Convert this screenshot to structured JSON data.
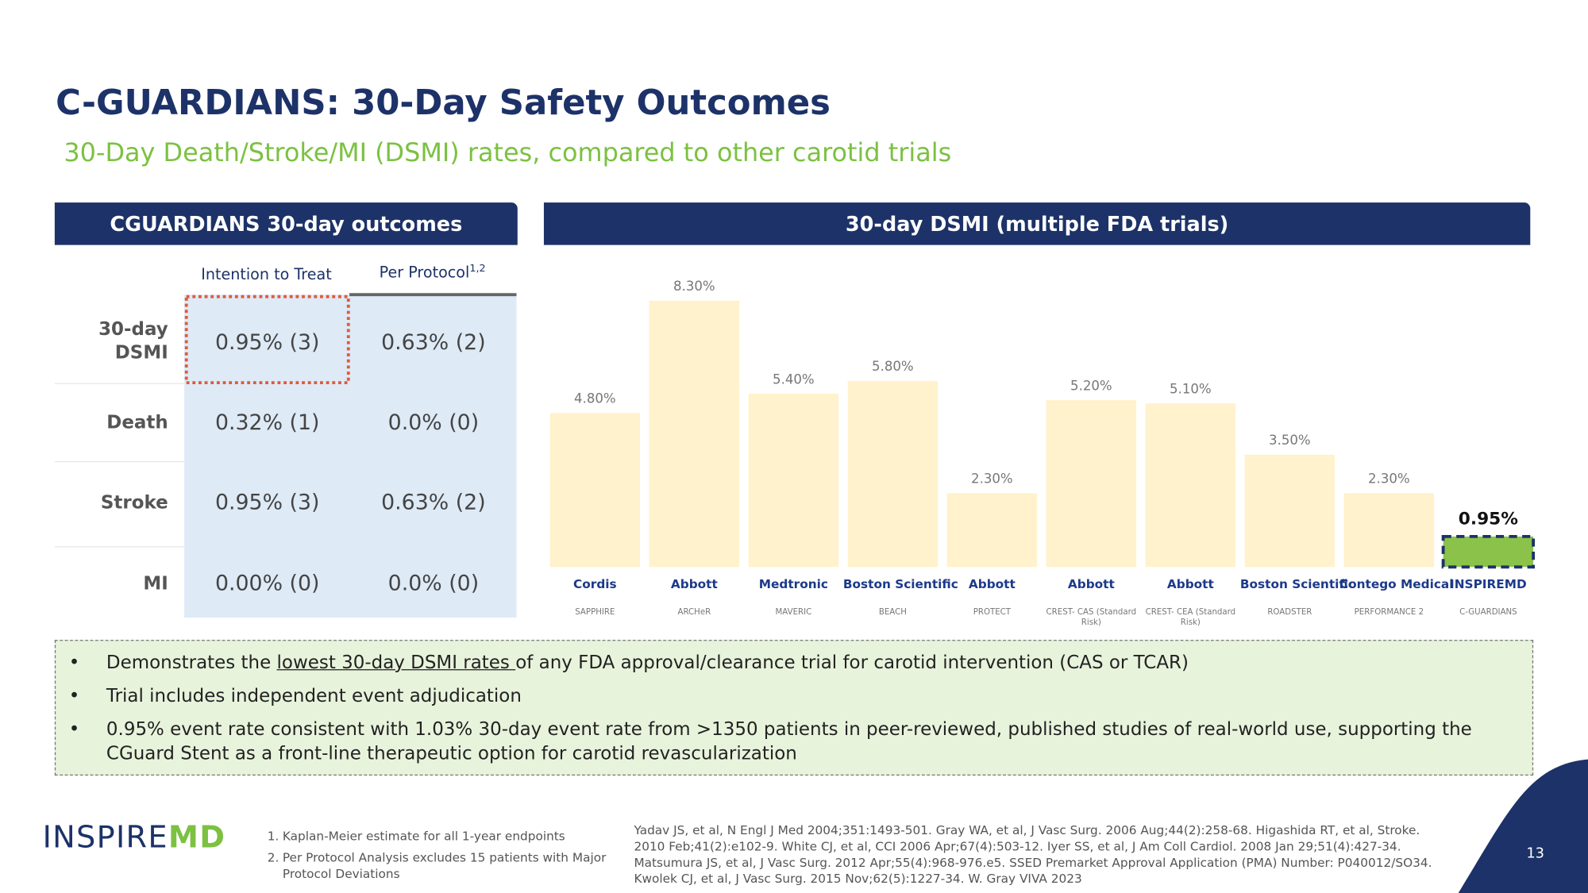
{
  "title": "C-GUARDIANS: 30-Day Safety Outcomes",
  "subtitle": "30-Day Death/Stroke/MI (DSMI) rates, compared to other carotid trials",
  "table": {
    "header": "CGUARDIANS 30-day outcomes",
    "columns": [
      "Intention to Treat",
      "Per Protocol"
    ],
    "column_superscript": "1,2",
    "rows": [
      {
        "label": "30-day DSMI",
        "cells": [
          "0.95% (3)",
          "0.63% (2)"
        ]
      },
      {
        "label": "Death",
        "cells": [
          "0.32% (1)",
          "0.0% (0)"
        ]
      },
      {
        "label": "Stroke",
        "cells": [
          "0.95% (3)",
          "0.63% (2)"
        ]
      },
      {
        "label": "MI",
        "cells": [
          "0.00% (0)",
          "0.0% (0)"
        ]
      }
    ]
  },
  "chart_data": {
    "type": "bar",
    "title": "30-day DSMI (multiple FDA trials)",
    "categories": [
      "SAPPHIRE",
      "ARCHeR",
      "MAVERIC",
      "BEACH",
      "PROTECT",
      "CREST- CAS (Standard Risk)",
      "CREST- CEA (Standard Risk)",
      "ROADSTER",
      "PERFORMANCE 2",
      "C-GUARDIANS"
    ],
    "sponsors": [
      "Cordis",
      "Abbott",
      "Medtronic",
      "Boston Scientific",
      "Abbott",
      "Abbott",
      "Abbott",
      "Boston Scientific",
      "Contego Medical",
      "INSPIREMD"
    ],
    "values": [
      4.8,
      8.3,
      5.4,
      5.8,
      2.3,
      5.2,
      5.1,
      3.5,
      2.3,
      0.95
    ],
    "value_labels": [
      "4.80%",
      "8.30%",
      "5.40%",
      "5.80%",
      "2.30%",
      "5.20%",
      "5.10%",
      "3.50%",
      "2.30%",
      "0.95%"
    ],
    "colors": [
      "#fff2cc",
      "#fff2cc",
      "#fff2cc",
      "#fff2cc",
      "#fff2cc",
      "#fff2cc",
      "#fff2cc",
      "#fff2cc",
      "#fff2cc",
      "#8bc34a"
    ]
  },
  "bullets": [
    [
      "Demonstrates the ",
      "lowest 30-day DSMI rates ",
      "of any FDA approval/clearance trial for carotid intervention (CAS or TCAR)"
    ],
    "Trial includes independent event adjudication",
    "0.95% event rate consistent with 1.03% 30-day event rate from >1350 patients in peer-reviewed, published studies of real-world use, supporting the CGuard Stent as a front-line therapeutic option for carotid revascularization"
  ],
  "logo": {
    "text": "INSPIRE",
    "accent": "MD"
  },
  "footnotes": [
    {
      "number": "1.",
      "text": "Kaplan-Meier estimate for all 1-year endpoints"
    },
    {
      "number": "2.",
      "text": "Per Protocol Analysis excludes 15 patients with Major Protocol Deviations"
    }
  ],
  "references": "Yadav JS, et al, N Engl J Med 2004;351:1493-501. Gray WA, et al, J Vasc Surg. 2006 Aug;44(2):258-68. Higashida RT, et al, Stroke. 2010 Feb;41(2):e102-9. White CJ, et al, CCI 2006 Apr;67(4):503-12. Iyer SS, et al, J Am Coll Cardiol. 2008 Jan 29;51(4):427-34. Matsumura JS, et al, J Vasc Surg. 2012 Apr;55(4):968-976.e5. SSED Premarket Approval Application (PMA) Number: P040012/SO34. Kwolek CJ, et al, J Vasc Surg. 2015 Nov;62(5):1227-34. W. Gray VIVA 2023",
  "page_number": "13"
}
